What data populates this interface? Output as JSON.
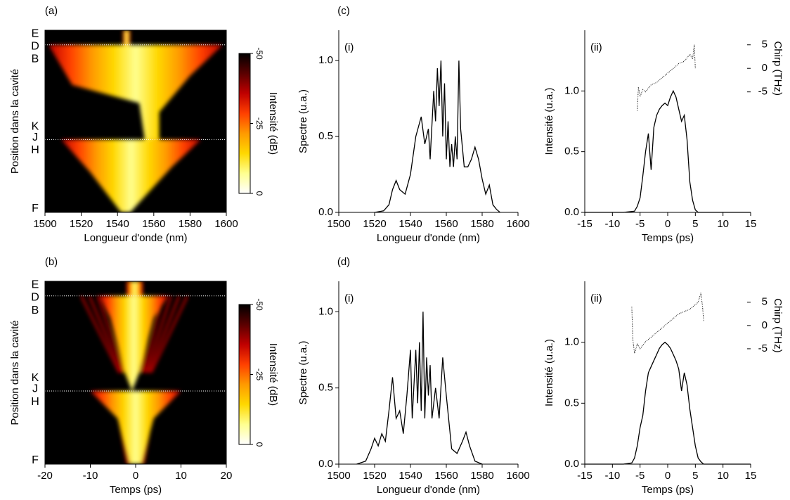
{
  "chart_data": [
    {
      "type": "heatmap",
      "panel": "(a)",
      "xlabel": "Longueur d'onde (nm)",
      "ylabel": "Position dans la cavité",
      "xlim": [
        1500,
        1600
      ],
      "xticks": [
        1500,
        1520,
        1540,
        1560,
        1580,
        1600
      ],
      "y_labels": [
        "E",
        "D",
        "B",
        "K",
        "J",
        "H",
        "F"
      ],
      "colormap": [
        "#000000",
        "#5a0000",
        "#c00000",
        "#ff4000",
        "#ff9a00",
        "#ffd800",
        "#ffff90",
        "#ffffff"
      ],
      "colorbar": {
        "label": "Intensité (dB)",
        "lim": [
          -50,
          0
        ],
        "ticks": [
          -50,
          -25,
          0
        ]
      }
    },
    {
      "type": "heatmap",
      "panel": "(b)",
      "xlabel": "Temps (ps)",
      "ylabel": "Position dans la cavité",
      "xlim": [
        -20,
        20
      ],
      "xticks": [
        -20,
        -10,
        0,
        10,
        20
      ],
      "y_labels": [
        "E",
        "D",
        "B",
        "K",
        "J",
        "H",
        "F"
      ],
      "colormap": [
        "#000000",
        "#5a0000",
        "#c00000",
        "#ff4000",
        "#ff9a00",
        "#ffd800",
        "#ffff90",
        "#ffffff"
      ],
      "colorbar": {
        "label": "Intensité (dB)",
        "lim": [
          -50,
          0
        ],
        "ticks": [
          -50,
          -25,
          0
        ]
      }
    },
    {
      "type": "line",
      "panel": "(c)",
      "annotation": "(i)",
      "xlabel": "Longueur d'onde (nm)",
      "ylabel": "Spectre (u.a.)",
      "xlim": [
        1500,
        1600
      ],
      "xticks": [
        1500,
        1520,
        1540,
        1560,
        1580,
        1600
      ],
      "ylim": [
        0,
        1.2
      ],
      "yticks": [
        {
          "value": 0,
          "label": "0.0"
        },
        {
          "value": 0.5,
          "label": "0.5"
        },
        {
          "value": 1,
          "label": "1.0"
        }
      ],
      "x": [
        1520,
        1525,
        1528,
        1530,
        1532,
        1534,
        1537,
        1540,
        1543,
        1546,
        1548,
        1550,
        1551,
        1553,
        1554,
        1555,
        1556,
        1557,
        1558,
        1559,
        1560,
        1561,
        1562,
        1563,
        1564,
        1565,
        1566,
        1567,
        1568,
        1570,
        1572,
        1574,
        1576,
        1578,
        1580,
        1582,
        1584,
        1586,
        1588,
        1590
      ],
      "series": [
        {
          "color": "#000000",
          "values": [
            0,
            0.01,
            0.05,
            0.15,
            0.21,
            0.15,
            0.12,
            0.25,
            0.5,
            0.63,
            0.45,
            0.55,
            0.35,
            0.8,
            0.6,
            0.95,
            0.7,
            1.0,
            0.5,
            0.85,
            0.35,
            0.6,
            0.3,
            0.45,
            0.3,
            0.5,
            0.35,
            1.0,
            0.55,
            0.3,
            0.3,
            0.35,
            0.43,
            0.35,
            0.22,
            0.12,
            0.18,
            0.05,
            0.02,
            0
          ]
        }
      ]
    },
    {
      "type": "line",
      "panel": null,
      "annotation": "(ii)",
      "xlabel": "Temps (ps)",
      "ylabel": "Intensité (u.a.)",
      "y2label": "Chirp (THz)",
      "xlim": [
        -15,
        15
      ],
      "xticks": [
        -15,
        -10,
        -5,
        0,
        5,
        10,
        15
      ],
      "ylim": [
        0,
        1.5
      ],
      "yticks": [
        {
          "value": 0,
          "label": "0.0"
        },
        {
          "value": 0.5,
          "label": "0.5"
        },
        {
          "value": 1,
          "label": "1.0"
        }
      ],
      "y2lim": [
        -30.6,
        8.1
      ],
      "y2ticks": [
        -5,
        0,
        5
      ],
      "x": [
        -15,
        -8,
        -6,
        -5.5,
        -5,
        -4.5,
        -4,
        -3.5,
        -3,
        -2.5,
        -2,
        -1.5,
        -1,
        -0.5,
        0,
        0.5,
        1,
        1.5,
        2,
        2.5,
        3,
        3.5,
        4,
        4.5,
        5,
        5.5,
        8,
        15
      ],
      "series": [
        {
          "color": "#000000",
          "values": [
            0,
            0,
            0.01,
            0.05,
            0.12,
            0.3,
            0.5,
            0.65,
            0.35,
            0.7,
            0.8,
            0.85,
            0.88,
            0.9,
            0.88,
            0.95,
            1.0,
            0.95,
            0.85,
            0.75,
            0.8,
            0.6,
            0.25,
            0.1,
            0.02,
            0,
            0,
            0
          ]
        },
        {
          "color": "#000000",
          "axis": "y2",
          "dash": "dotted",
          "x": [
            -5.5,
            -5.3,
            -5,
            -4.5,
            -4,
            -3,
            -2,
            -1,
            0,
            1,
            2,
            3,
            4,
            4.5,
            4.8,
            5
          ],
          "values": [
            -9,
            -4,
            -6,
            -4.5,
            -5,
            -3.5,
            -3,
            -2,
            -1,
            0,
            1,
            1.5,
            3,
            2,
            5,
            0
          ]
        }
      ]
    },
    {
      "type": "line",
      "panel": "(d)",
      "annotation": "(i)",
      "xlabel": "Longueur d'onde (nm)",
      "ylabel": "Spectre (u.a.)",
      "xlim": [
        1500,
        1600
      ],
      "xticks": [
        1500,
        1520,
        1540,
        1560,
        1580,
        1600
      ],
      "ylim": [
        0,
        1.2
      ],
      "yticks": [
        {
          "value": 0,
          "label": "0.0"
        },
        {
          "value": 0.5,
          "label": "0.5"
        },
        {
          "value": 1,
          "label": "1.0"
        }
      ],
      "x": [
        1510,
        1515,
        1518,
        1520,
        1522,
        1524,
        1526,
        1528,
        1530,
        1532,
        1534,
        1536,
        1538,
        1540,
        1541,
        1543,
        1544,
        1545,
        1546,
        1547,
        1548,
        1549,
        1550,
        1551,
        1552,
        1554,
        1556,
        1558,
        1560,
        1563,
        1566,
        1569,
        1571,
        1573,
        1576,
        1580
      ],
      "series": [
        {
          "color": "#000000",
          "values": [
            0,
            0.02,
            0.1,
            0.17,
            0.12,
            0.2,
            0.15,
            0.35,
            0.57,
            0.3,
            0.35,
            0.2,
            0.45,
            0.75,
            0.3,
            0.75,
            0.4,
            0.8,
            0.35,
            1.0,
            0.3,
            0.7,
            0.45,
            0.65,
            0.3,
            0.5,
            0.3,
            0.7,
            0.45,
            0.1,
            0.07,
            0.15,
            0.21,
            0.12,
            0.02,
            0
          ]
        }
      ]
    },
    {
      "type": "line",
      "panel": null,
      "annotation": "(ii)",
      "xlabel": "Temps (ps)",
      "ylabel": "Intensité (u.a.)",
      "y2label": "Chirp (THz)",
      "xlim": [
        -15,
        15
      ],
      "xticks": [
        -15,
        -10,
        -5,
        0,
        5,
        10,
        15
      ],
      "ylim": [
        0,
        1.5
      ],
      "yticks": [
        {
          "value": 0,
          "label": "0.0"
        },
        {
          "value": 0.5,
          "label": "0.5"
        },
        {
          "value": 1,
          "label": "1.0"
        }
      ],
      "y2lim": [
        -29.8,
        9.5
      ],
      "y2ticks": [
        -5,
        0,
        5
      ],
      "x": [
        -15,
        -8,
        -6.5,
        -6,
        -5.5,
        -5,
        -4.5,
        -4,
        -3.5,
        -3,
        -2.5,
        -2,
        -1.5,
        -1,
        -0.5,
        0,
        0.5,
        1,
        1.5,
        2,
        2.5,
        3,
        3.5,
        4,
        4.5,
        5,
        5.5,
        6,
        6.5,
        8,
        15
      ],
      "series": [
        {
          "color": "#000000",
          "values": [
            0,
            0,
            0.01,
            0.05,
            0.15,
            0.3,
            0.4,
            0.6,
            0.75,
            0.8,
            0.85,
            0.9,
            0.95,
            0.98,
            1.0,
            0.98,
            0.95,
            0.9,
            0.85,
            0.78,
            0.6,
            0.75,
            0.65,
            0.45,
            0.3,
            0.15,
            0.05,
            0.02,
            0,
            0,
            0
          ]
        },
        {
          "color": "#000000",
          "axis": "y2",
          "dash": "dotted",
          "x": [
            -6.5,
            -6.3,
            -6,
            -5.5,
            -5,
            -4,
            -3,
            -2,
            -1,
            0,
            1,
            2,
            3,
            4,
            5,
            5.5,
            6,
            6.3,
            6.5
          ],
          "values": [
            4,
            -3,
            -6,
            -4,
            -5,
            -3.5,
            -2.5,
            -1.5,
            -0.5,
            0.5,
            1.5,
            2.5,
            3,
            3.5,
            4.5,
            5,
            7,
            4,
            1
          ]
        }
      ]
    }
  ]
}
